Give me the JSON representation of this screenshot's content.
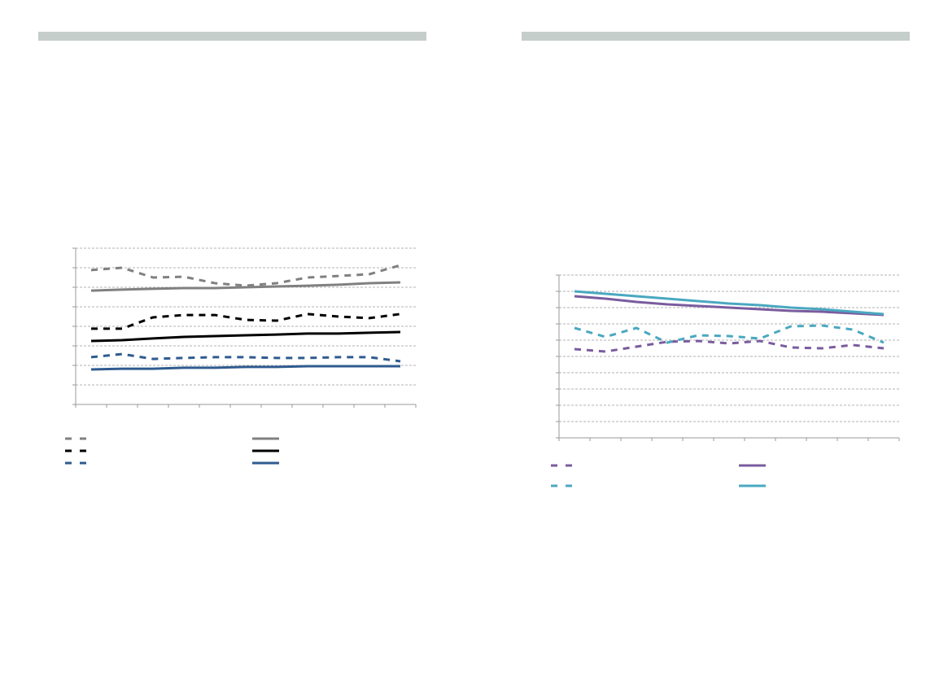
{
  "chart_data": [
    {
      "type": "line",
      "categories": [
        null,
        null,
        null,
        null,
        null,
        null,
        null,
        null,
        null,
        null,
        null
      ],
      "ylim": [
        0,
        8
      ],
      "yticks": [
        0,
        1,
        2,
        3,
        4,
        5,
        6,
        7,
        8
      ],
      "grid": true,
      "series": [
        {
          "color": "#808080",
          "dash": true,
          "values": [
            6.88,
            7.0,
            6.5,
            6.54,
            6.21,
            6.08,
            6.21,
            6.5,
            6.58,
            6.67,
            7.13
          ]
        },
        {
          "color": "#000000",
          "dash": true,
          "values": [
            3.88,
            3.88,
            4.46,
            4.58,
            4.58,
            4.33,
            4.29,
            4.63,
            4.5,
            4.42,
            4.63
          ]
        },
        {
          "color": "#2f5b8f",
          "dash": true,
          "values": [
            2.42,
            2.58,
            2.33,
            2.38,
            2.42,
            2.42,
            2.38,
            2.38,
            2.42,
            2.42,
            2.21
          ]
        },
        {
          "color": "#808080",
          "dash": false,
          "values": [
            5.83,
            5.88,
            5.92,
            5.96,
            5.96,
            6.0,
            6.04,
            6.08,
            6.13,
            6.21,
            6.25
          ]
        },
        {
          "color": "#000000",
          "dash": false,
          "values": [
            3.25,
            3.29,
            3.38,
            3.46,
            3.5,
            3.54,
            3.58,
            3.63,
            3.63,
            3.67,
            3.71
          ]
        },
        {
          "color": "#2f5b8f",
          "dash": false,
          "values": [
            1.79,
            1.83,
            1.83,
            1.88,
            1.88,
            1.92,
            1.92,
            1.96,
            1.96,
            1.96,
            1.96
          ]
        }
      ]
    },
    {
      "type": "line",
      "categories": [
        null,
        null,
        null,
        null,
        null,
        null,
        null,
        null,
        null,
        null,
        null
      ],
      "ylim": [
        0,
        10
      ],
      "yticks": [
        0,
        1,
        2,
        3,
        4,
        5,
        6,
        7,
        8,
        9,
        10
      ],
      "grid": true,
      "series": [
        {
          "color": "#7a5c9e",
          "dash": true,
          "values": [
            5.45,
            5.3,
            5.6,
            5.9,
            5.95,
            5.8,
            5.95,
            5.55,
            5.5,
            5.7,
            5.5
          ]
        },
        {
          "color": "#4aa8c0",
          "dash": true,
          "values": [
            6.75,
            6.2,
            6.75,
            5.85,
            6.3,
            6.25,
            6.1,
            6.85,
            6.9,
            6.65,
            5.85
          ]
        },
        {
          "color": "#7a5c9e",
          "dash": false,
          "values": [
            8.7,
            8.55,
            8.35,
            8.2,
            8.1,
            8.0,
            7.9,
            7.8,
            7.75,
            7.65,
            7.55
          ]
        },
        {
          "color": "#4aa8c0",
          "dash": false,
          "values": [
            9.0,
            8.85,
            8.7,
            8.55,
            8.4,
            8.25,
            8.15,
            8.0,
            7.9,
            7.75,
            7.6
          ]
        }
      ]
    }
  ]
}
